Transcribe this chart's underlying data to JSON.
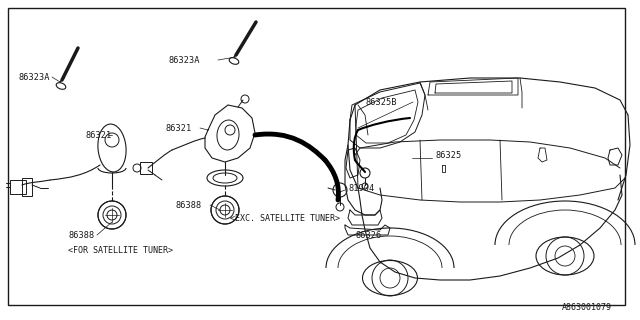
{
  "bg_color": "#ffffff",
  "line_color": "#1a1a1a",
  "diagram_id": "A863001079",
  "border": [
    0.012,
    0.025,
    0.976,
    0.952
  ]
}
